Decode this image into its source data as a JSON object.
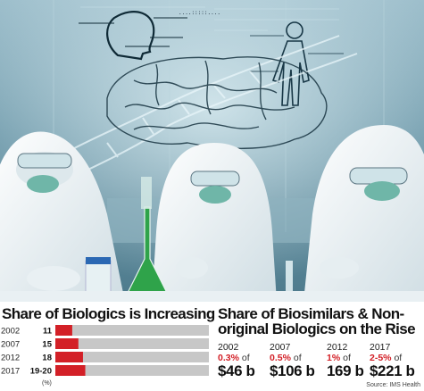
{
  "colors": {
    "accent": "#d32027",
    "bar_background": "#c7c7c7",
    "photo_tint": "#5e8a9c"
  },
  "chart_data": [
    {
      "type": "bar",
      "orientation": "horizontal",
      "title": "Share of Biologics is Increasing",
      "categories": [
        "2002",
        "2007",
        "2012",
        "2017"
      ],
      "values": [
        11,
        15,
        18,
        19.5
      ],
      "value_labels": [
        "11",
        "15",
        "18",
        "19-20"
      ],
      "unit_label": "(%)",
      "xlim": [
        0,
        100
      ]
    },
    {
      "type": "table",
      "title": "Share of Biosimilars & Non-original Biologics on the Rise",
      "columns": [
        {
          "year": "2002",
          "share": "0.3%",
          "of": "of",
          "amount": "$46 b"
        },
        {
          "year": "2007",
          "share": "0.5%",
          "of": "of",
          "amount": "$106 b"
        },
        {
          "year": "2012",
          "share": "1%",
          "of": "of",
          "amount": "169 b"
        },
        {
          "year": "2017",
          "share": "2-5%",
          "of": "of",
          "amount": "$221 b"
        }
      ],
      "source": "Source: IMS Health"
    }
  ]
}
